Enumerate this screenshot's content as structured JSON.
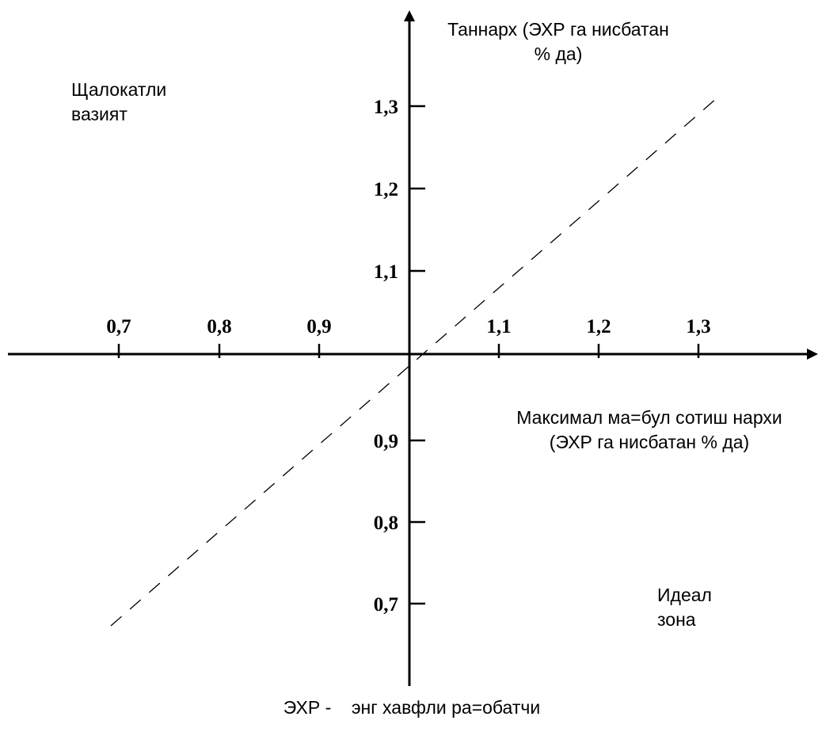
{
  "diagram": {
    "y_axis_label": "Таннарх (ЭХР га нисбатан % да)",
    "x_axis_label": "Максимал ма=бул сотиш нархи (ЭХР га нисбатан % да)",
    "danger_zone_label": "Щалокатли вазият",
    "ideal_zone_label": "Идеал зона",
    "caption": "ЭХР -    энг хавфли ра=обатчи",
    "x_ticks": [
      "0,7",
      "0,8",
      "0,9",
      "1,1",
      "1,2",
      "1,3"
    ],
    "y_ticks_upper": [
      "1,1",
      "1,2",
      "1,3"
    ],
    "y_ticks_lower": [
      "0,9",
      "0,8",
      "0,7"
    ],
    "diagonal_style": "dashed"
  }
}
